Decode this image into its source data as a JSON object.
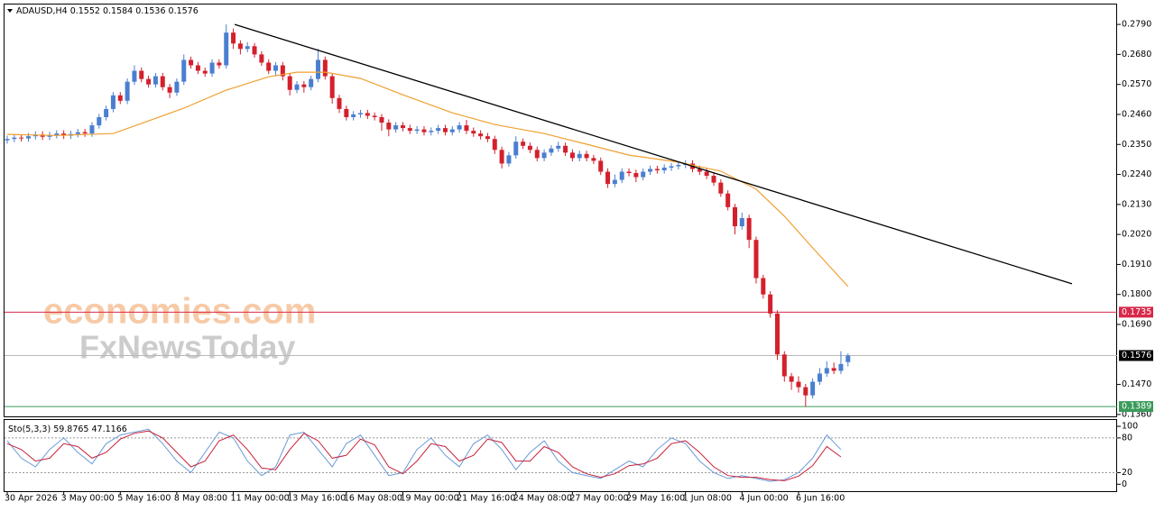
{
  "chart_data": [
    {
      "type": "candlestick",
      "symbol": "ADAUSD,H4",
      "header_values": [
        0.1552,
        0.1584,
        0.1536,
        0.1576
      ],
      "watermark": [
        "economies.com",
        "FxNewsToday"
      ],
      "up_color": "#4a7fd0",
      "down_color": "#d4202c",
      "ylim": [
        0.1353,
        0.2863
      ],
      "yticks": [
        {
          "value": 0.279,
          "label": "0.2790"
        },
        {
          "value": 0.268,
          "label": "0.2680"
        },
        {
          "value": 0.257,
          "label": "0.2570"
        },
        {
          "value": 0.246,
          "label": "0.2460"
        },
        {
          "value": 0.235,
          "label": "0.2350"
        },
        {
          "value": 0.224,
          "label": "0.2240"
        },
        {
          "value": 0.213,
          "label": "0.2130"
        },
        {
          "value": 0.202,
          "label": "0.2020"
        },
        {
          "value": 0.191,
          "label": "0.1910"
        },
        {
          "value": 0.18,
          "label": "0.1800"
        },
        {
          "value": 0.169,
          "label": "0.1690"
        },
        {
          "value": 0.147,
          "label": "0.1470"
        },
        {
          "value": 0.136,
          "label": "0.1360"
        }
      ],
      "xticks": [
        {
          "value": 0,
          "label": "30 Apr 2026"
        },
        {
          "value": 8,
          "label": "3 May 00:00"
        },
        {
          "value": 16,
          "label": "5 May 16:00"
        },
        {
          "value": 24,
          "label": "8 May 08:00"
        },
        {
          "value": 32,
          "label": "11 May 00:00"
        },
        {
          "value": 40,
          "label": "13 May 16:00"
        },
        {
          "value": 48,
          "label": "16 May 08:00"
        },
        {
          "value": 56,
          "label": "19 May 00:00"
        },
        {
          "value": 64,
          "label": "21 May 16:00"
        },
        {
          "value": 72,
          "label": "24 May 08:00"
        },
        {
          "value": 80,
          "label": "27 May 00:00"
        },
        {
          "value": 88,
          "label": "29 May 16:00"
        },
        {
          "value": 96,
          "label": "1 Jun 08:00"
        },
        {
          "value": 104,
          "label": "4 Jun 00:00"
        },
        {
          "value": 112,
          "label": "6 Jun 16:00"
        }
      ],
      "open": [
        0.2365,
        0.237,
        0.2375,
        0.2372,
        0.238,
        0.2386,
        0.2378,
        0.2384,
        0.239,
        0.2382,
        0.2388,
        0.2395,
        0.239,
        0.242,
        0.245,
        0.248,
        0.253,
        0.251,
        0.258,
        0.262,
        0.259,
        0.257,
        0.26,
        0.256,
        0.254,
        0.258,
        0.266,
        0.264,
        0.262,
        0.261,
        0.265,
        0.264,
        0.276,
        0.272,
        0.27,
        0.271,
        0.268,
        0.265,
        0.262,
        0.264,
        0.26,
        0.255,
        0.257,
        0.256,
        0.259,
        0.266,
        0.26,
        0.252,
        0.248,
        0.245,
        0.246,
        0.2465,
        0.2455,
        0.245,
        0.243,
        0.2405,
        0.242,
        0.241,
        0.24,
        0.2405,
        0.2395,
        0.24,
        0.241,
        0.2395,
        0.2405,
        0.242,
        0.24,
        0.239,
        0.238,
        0.237,
        0.233,
        0.228,
        0.231,
        0.236,
        0.2345,
        0.233,
        0.23,
        0.232,
        0.2335,
        0.2345,
        0.232,
        0.23,
        0.2315,
        0.23,
        0.229,
        0.225,
        0.2205,
        0.222,
        0.225,
        0.2245,
        0.223,
        0.225,
        0.226,
        0.2255,
        0.2265,
        0.227,
        0.2275,
        0.228,
        0.226,
        0.225,
        0.2235,
        0.221,
        0.217,
        0.212,
        0.205,
        0.208,
        0.2,
        0.186,
        0.18,
        0.173,
        0.158,
        0.15,
        0.148,
        0.146,
        0.143,
        0.148,
        0.151,
        0.153,
        0.152,
        0.1552
      ],
      "high": [
        0.2382,
        0.2387,
        0.2387,
        0.2392,
        0.2398,
        0.2398,
        0.2396,
        0.2402,
        0.2402,
        0.24,
        0.2407,
        0.2407,
        0.2432,
        0.2462,
        0.2492,
        0.2542,
        0.2542,
        0.2592,
        0.264,
        0.2632,
        0.2602,
        0.2612,
        0.2612,
        0.2572,
        0.2592,
        0.268,
        0.2672,
        0.2652,
        0.2632,
        0.2662,
        0.2662,
        0.279,
        0.2775,
        0.2732,
        0.2725,
        0.2722,
        0.2692,
        0.2662,
        0.2652,
        0.2652,
        0.2612,
        0.2582,
        0.2582,
        0.2602,
        0.27,
        0.2672,
        0.2612,
        0.2532,
        0.2492,
        0.2472,
        0.2477,
        0.2477,
        0.2467,
        0.2462,
        0.2442,
        0.2432,
        0.2432,
        0.2422,
        0.2417,
        0.2417,
        0.2412,
        0.2422,
        0.2422,
        0.2417,
        0.2432,
        0.244,
        0.2412,
        0.2402,
        0.2392,
        0.2382,
        0.2342,
        0.2322,
        0.238,
        0.2372,
        0.2357,
        0.2342,
        0.2332,
        0.2347,
        0.236,
        0.2357,
        0.2332,
        0.2327,
        0.2327,
        0.2312,
        0.2302,
        0.2262,
        0.224,
        0.2262,
        0.2262,
        0.2257,
        0.2262,
        0.2272,
        0.2272,
        0.2277,
        0.2282,
        0.2287,
        0.2292,
        0.2292,
        0.2272,
        0.2262,
        0.2247,
        0.2222,
        0.2182,
        0.2132,
        0.21,
        0.2092,
        0.2012,
        0.1872,
        0.1812,
        0.1742,
        0.1592,
        0.1512,
        0.15,
        0.1472,
        0.1492,
        0.153,
        0.1555,
        0.155,
        0.1592,
        0.1584
      ],
      "low": [
        0.2353,
        0.2358,
        0.236,
        0.236,
        0.2368,
        0.2366,
        0.2366,
        0.2372,
        0.237,
        0.237,
        0.2376,
        0.2378,
        0.2378,
        0.2408,
        0.2438,
        0.2468,
        0.2498,
        0.2498,
        0.2568,
        0.2578,
        0.2558,
        0.2558,
        0.2548,
        0.252,
        0.2528,
        0.2568,
        0.2628,
        0.2608,
        0.2598,
        0.2598,
        0.2628,
        0.2628,
        0.27,
        0.268,
        0.2688,
        0.2668,
        0.2638,
        0.2608,
        0.26,
        0.2585,
        0.253,
        0.2538,
        0.254,
        0.2548,
        0.2578,
        0.2588,
        0.25,
        0.2465,
        0.2438,
        0.2438,
        0.2448,
        0.2443,
        0.2438,
        0.24,
        0.238,
        0.2393,
        0.2398,
        0.2388,
        0.2388,
        0.2383,
        0.2383,
        0.2388,
        0.2383,
        0.2383,
        0.2393,
        0.2388,
        0.2378,
        0.2368,
        0.2358,
        0.2315,
        0.2262,
        0.2268,
        0.2298,
        0.2333,
        0.2318,
        0.2288,
        0.2288,
        0.2308,
        0.2323,
        0.2308,
        0.2288,
        0.2288,
        0.2288,
        0.2278,
        0.2238,
        0.219,
        0.2193,
        0.2208,
        0.2233,
        0.2212,
        0.2218,
        0.2238,
        0.2243,
        0.2243,
        0.2253,
        0.2258,
        0.2263,
        0.2248,
        0.2238,
        0.2223,
        0.2198,
        0.2158,
        0.2108,
        0.202,
        0.2038,
        0.197,
        0.184,
        0.1785,
        0.1715,
        0.156,
        0.148,
        0.145,
        0.144,
        0.1389,
        0.1418,
        0.1468,
        0.1498,
        0.1508,
        0.1508,
        0.1536
      ],
      "close": [
        0.237,
        0.2375,
        0.2372,
        0.238,
        0.2386,
        0.2378,
        0.2384,
        0.239,
        0.2382,
        0.2388,
        0.2395,
        0.239,
        0.242,
        0.245,
        0.248,
        0.253,
        0.251,
        0.258,
        0.262,
        0.259,
        0.257,
        0.26,
        0.256,
        0.254,
        0.258,
        0.266,
        0.264,
        0.262,
        0.261,
        0.265,
        0.264,
        0.276,
        0.272,
        0.27,
        0.271,
        0.268,
        0.265,
        0.262,
        0.264,
        0.26,
        0.255,
        0.257,
        0.256,
        0.259,
        0.266,
        0.26,
        0.252,
        0.248,
        0.245,
        0.246,
        0.2465,
        0.2455,
        0.245,
        0.243,
        0.2405,
        0.242,
        0.241,
        0.24,
        0.2405,
        0.2395,
        0.24,
        0.241,
        0.2395,
        0.2405,
        0.242,
        0.24,
        0.239,
        0.238,
        0.237,
        0.233,
        0.228,
        0.231,
        0.236,
        0.2345,
        0.233,
        0.23,
        0.232,
        0.2335,
        0.2345,
        0.232,
        0.23,
        0.2315,
        0.23,
        0.229,
        0.225,
        0.2205,
        0.222,
        0.225,
        0.2245,
        0.223,
        0.225,
        0.226,
        0.2255,
        0.2265,
        0.227,
        0.2275,
        0.228,
        0.226,
        0.225,
        0.2235,
        0.221,
        0.217,
        0.212,
        0.205,
        0.208,
        0.2,
        0.186,
        0.18,
        0.173,
        0.158,
        0.15,
        0.148,
        0.146,
        0.143,
        0.148,
        0.151,
        0.153,
        0.152,
        0.1545,
        0.1576
      ],
      "ma": {
        "color": "#f0a030",
        "x": [
          0,
          7,
          15,
          25,
          31,
          37,
          41,
          45,
          50,
          56,
          63,
          69,
          76,
          82,
          88,
          95,
          101,
          106,
          110,
          114,
          119
        ],
        "values": [
          0.2387,
          0.2383,
          0.239,
          0.2483,
          0.2549,
          0.2598,
          0.2615,
          0.2615,
          0.2592,
          0.2532,
          0.2466,
          0.2423,
          0.239,
          0.2351,
          0.2311,
          0.2285,
          0.2252,
          0.2186,
          0.2087,
          0.1971,
          0.1829
        ]
      },
      "trendline": {
        "color": "#000000",
        "x": [
          32.2,
          150.7
        ],
        "values": [
          0.279,
          0.1839
        ]
      },
      "levels": [
        {
          "value": 0.1735,
          "color": "#d8284a"
        },
        {
          "value": 0.1576,
          "color": "#b8b8b8"
        },
        {
          "value": 0.1389,
          "color": "#3a9a5a"
        }
      ]
    },
    {
      "type": "stochastic",
      "title": "Sto(5,3,3)",
      "header_values": [
        59.8765,
        47.1166
      ],
      "ylim": [
        -12,
        111
      ],
      "yticks": [
        100,
        80,
        20,
        0
      ],
      "grid_levels": [
        80,
        20
      ],
      "x": [
        0,
        2,
        4,
        6,
        8,
        10,
        12,
        14,
        16,
        18,
        20,
        22,
        24,
        26,
        28,
        30,
        32,
        34,
        36,
        38,
        40,
        42,
        44,
        46,
        48,
        50,
        52,
        54,
        56,
        58,
        60,
        62,
        64,
        66,
        68,
        70,
        72,
        74,
        76,
        78,
        80,
        82,
        84,
        86,
        88,
        90,
        92,
        94,
        96,
        98,
        100,
        102,
        104,
        106,
        108,
        110,
        112,
        114,
        116,
        118
      ],
      "series": [
        {
          "color": "#6a9ad8",
          "values": [
            75,
            45,
            30,
            60,
            80,
            55,
            35,
            70,
            85,
            90,
            95,
            70,
            40,
            20,
            55,
            90,
            80,
            40,
            15,
            30,
            85,
            90,
            60,
            30,
            70,
            85,
            50,
            15,
            20,
            60,
            80,
            50,
            30,
            70,
            85,
            60,
            25,
            55,
            75,
            40,
            20,
            15,
            10,
            25,
            40,
            30,
            60,
            80,
            70,
            40,
            20,
            10,
            15,
            10,
            5,
            8,
            20,
            45,
            85,
            59.8765
          ]
        },
        {
          "color": "#c8203a",
          "values": [
            70,
            60,
            40,
            45,
            70,
            65,
            45,
            55,
            78,
            88,
            92,
            80,
            55,
            30,
            40,
            75,
            85,
            60,
            28,
            25,
            60,
            88,
            75,
            45,
            50,
            78,
            68,
            30,
            18,
            40,
            70,
            65,
            40,
            50,
            78,
            72,
            40,
            40,
            65,
            55,
            30,
            18,
            12,
            18,
            32,
            35,
            45,
            70,
            75,
            55,
            30,
            15,
            12,
            12,
            8,
            6,
            14,
            32,
            65,
            47.1166
          ]
        }
      ]
    }
  ]
}
